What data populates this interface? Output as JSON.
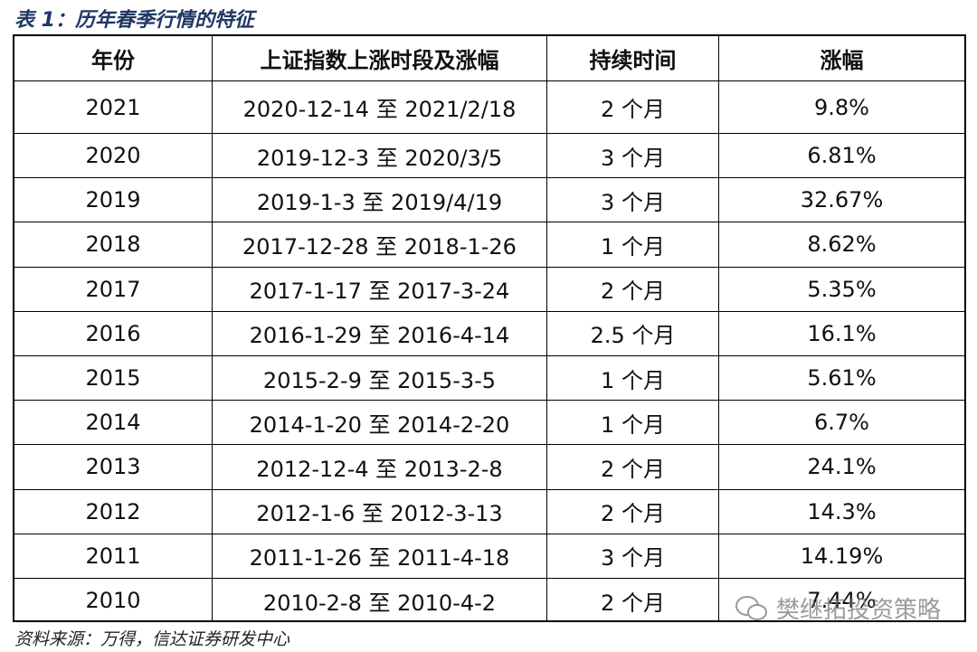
{
  "title": "表 1：历年春季行情的特征",
  "table": {
    "header": [
      "年份",
      "上证指数上涨时段及涨幅",
      "持续时间",
      "涨幅"
    ],
    "rows": [
      [
        "2021",
        "2020-12-14 至 2021/2/18",
        "2 个月",
        "9.8%"
      ],
      [
        "2020",
        "2019-12-3 至 2020/3/5",
        "3 个月",
        "6.81%"
      ],
      [
        "2019",
        "2019-1-3 至 2019/4/19",
        "3 个月",
        "32.67%"
      ],
      [
        "2018",
        "2017-12-28 至 2018-1-26",
        "1 个月",
        "8.62%"
      ],
      [
        "2017",
        "2017-1-17 至 2017-3-24",
        "2 个月",
        "5.35%"
      ],
      [
        "2016",
        "2016-1-29 至 2016-4-14",
        "2.5 个月",
        "16.1%"
      ],
      [
        "2015",
        "2015-2-9 至 2015-3-5",
        "1 个月",
        "5.61%"
      ],
      [
        "2014",
        "2014-1-20 至 2014-2-20",
        "1 个月",
        "6.7%"
      ],
      [
        "2013",
        "2012-12-4 至 2013-2-8",
        "2 个月",
        "24.1%"
      ],
      [
        "2012",
        "2012-1-6 至 2012-3-13",
        "2 个月",
        "14.3%"
      ],
      [
        "2011",
        "2011-1-26 至 2011-4-18",
        "3 个月",
        "14.19%"
      ],
      [
        "2010",
        "2010-2-8 至 2010-4-2",
        "2 个月",
        "7.44%"
      ]
    ]
  },
  "source": "资料来源：万得，信达证券研发中心",
  "watermark": "樊继拓投资策略"
}
